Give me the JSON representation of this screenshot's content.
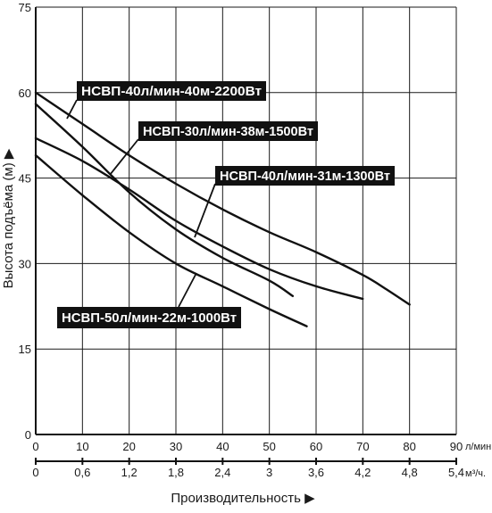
{
  "chart_data": {
    "type": "line",
    "ylabel": "Высота подъёма (м) ▶",
    "xlabel": "Производительность ▶",
    "ylim": [
      0,
      75
    ],
    "xlim": [
      0,
      90
    ],
    "grid": true,
    "y_ticks": [
      0,
      15,
      30,
      45,
      60,
      75
    ],
    "x_ticks_primary": {
      "values": [
        0,
        10,
        20,
        30,
        40,
        50,
        60,
        70,
        80,
        90
      ],
      "labels": [
        "0",
        "10",
        "20",
        "30",
        "40",
        "50",
        "60",
        "70",
        "80",
        "90"
      ],
      "unit": "л/мин."
    },
    "x_ticks_secondary": {
      "labels": [
        "0",
        "0,6",
        "1,2",
        "1,8",
        "2,4",
        "3",
        "3,6",
        "4,2",
        "4,8",
        "5,4"
      ],
      "unit": "м³/ч."
    },
    "series": [
      {
        "name": "НСВП-40л/мин-40м-2200Вт",
        "x": [
          0,
          10,
          20,
          30,
          40,
          50,
          60,
          70,
          75,
          80
        ],
        "y": [
          60,
          54.5,
          49,
          44,
          39.5,
          35.5,
          32,
          28,
          25.5,
          22.8
        ]
      },
      {
        "name": "НСВП-30л/мин-38м-1500Вт",
        "x": [
          0,
          10,
          20,
          30,
          40,
          50,
          55
        ],
        "y": [
          58,
          50.5,
          42.5,
          36,
          31,
          27,
          24.3
        ]
      },
      {
        "name": "НСВП-40л/мин-31м-1300Вт",
        "x": [
          0,
          10,
          20,
          30,
          40,
          50,
          60,
          70
        ],
        "y": [
          52,
          48,
          43,
          37.5,
          33,
          29,
          26,
          23.8
        ]
      },
      {
        "name": "НСВП-50л/мин-22м-1000Вт",
        "x": [
          0,
          10,
          20,
          30,
          40,
          50,
          58
        ],
        "y": [
          49,
          42,
          35.5,
          30,
          26,
          22,
          19
        ]
      }
    ]
  },
  "callouts": [
    {
      "text": "НСВП-40л/мин-40м-2200Вт"
    },
    {
      "text": "НСВП-30л/мин-38м-1500Вт"
    },
    {
      "text": "НСВП-40л/мин-31м-1300Вт"
    },
    {
      "text": "НСВП-50л/мин-22м-1000Вт"
    }
  ]
}
